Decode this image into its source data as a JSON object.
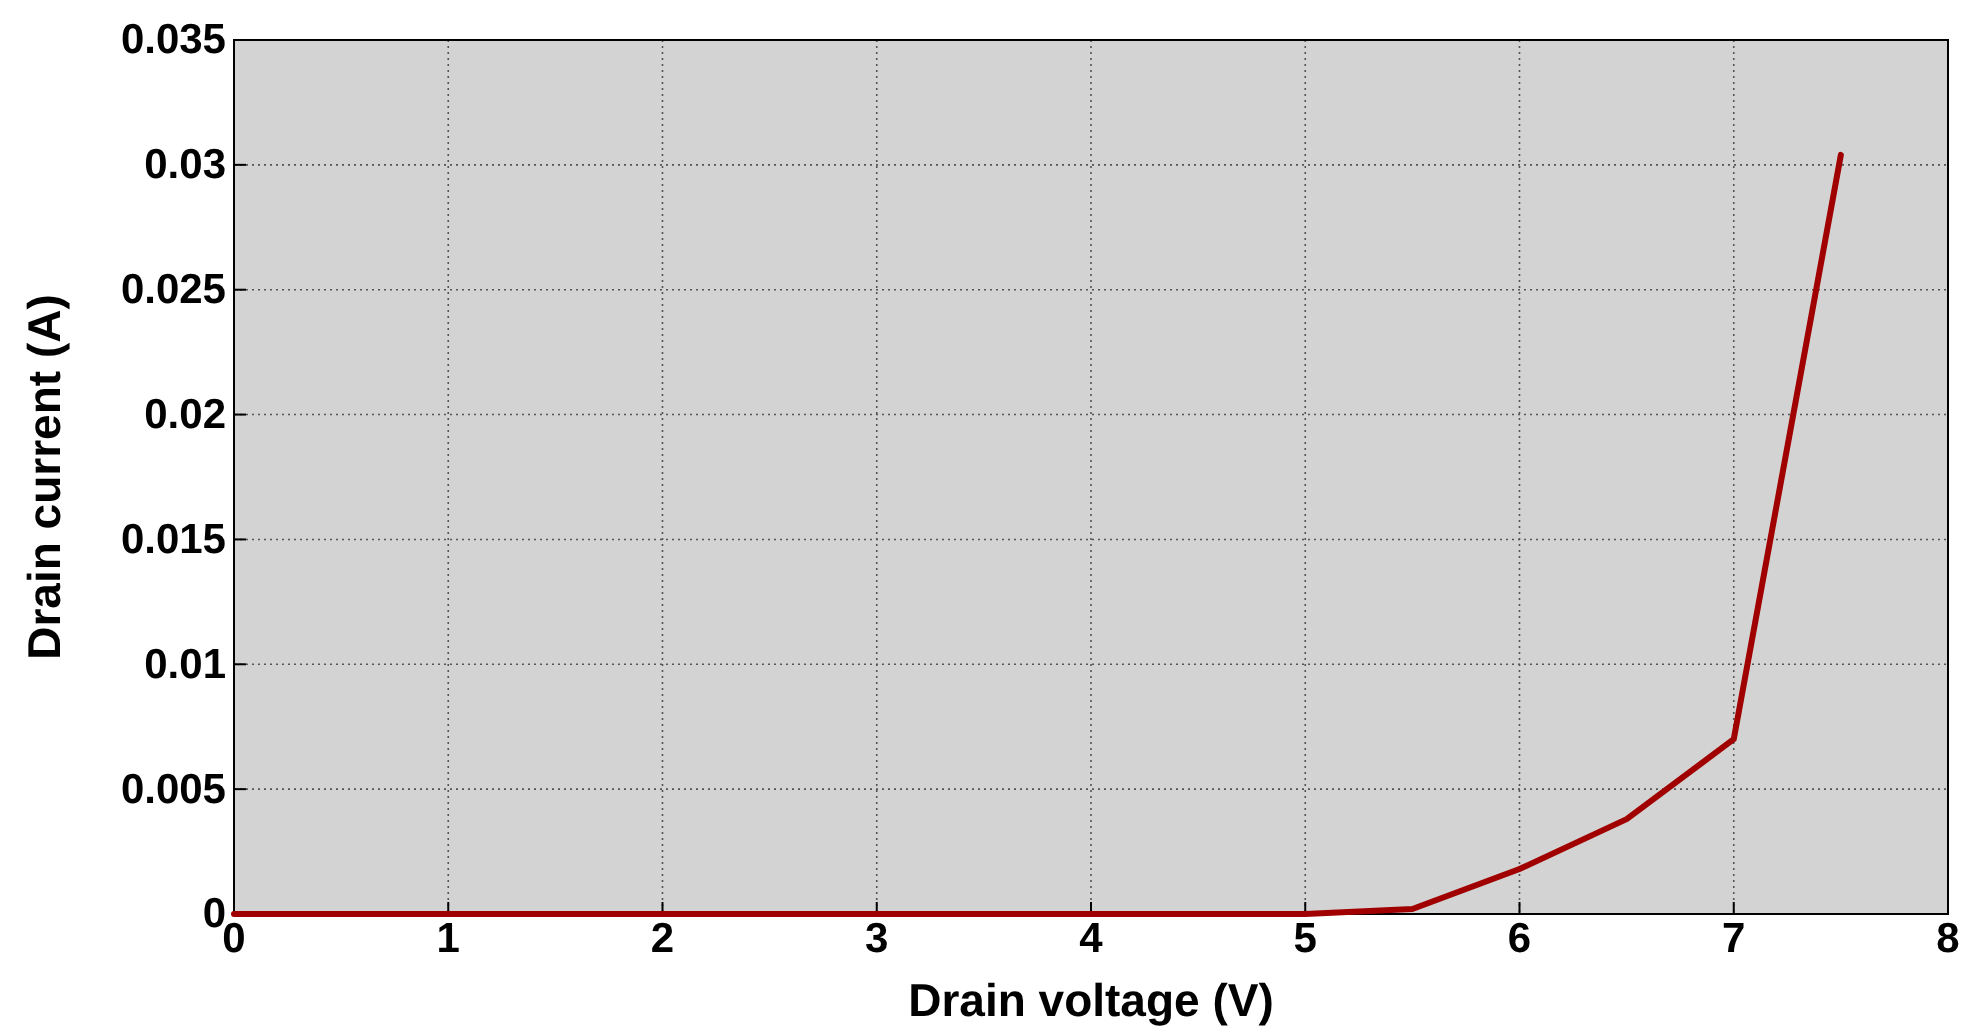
{
  "chart_data": {
    "type": "line",
    "xlabel": "Drain voltage (V)",
    "ylabel": "Drain current (A)",
    "x": [
      0,
      0.5,
      1,
      1.5,
      2,
      2.5,
      3,
      3.5,
      4,
      4.5,
      5,
      5.5,
      6,
      6.5,
      7,
      7.5
    ],
    "series": [
      {
        "color": "#a00000",
        "values": [
          0,
          0,
          0,
          0,
          0,
          0,
          0,
          0,
          0,
          0,
          0,
          0.0002,
          0.0018,
          0.0038,
          0.007,
          0.0304
        ]
      }
    ],
    "xlim": [
      0,
      8
    ],
    "xticks": [
      0,
      1,
      2,
      3,
      4,
      5,
      6,
      7,
      8
    ],
    "ylim": [
      0,
      0.035
    ],
    "yticks": [
      0,
      0.005,
      0.01,
      0.015,
      0.02,
      0.025,
      0.03,
      0.035
    ],
    "grid": true,
    "line_style": "solid",
    "marker": "none"
  }
}
